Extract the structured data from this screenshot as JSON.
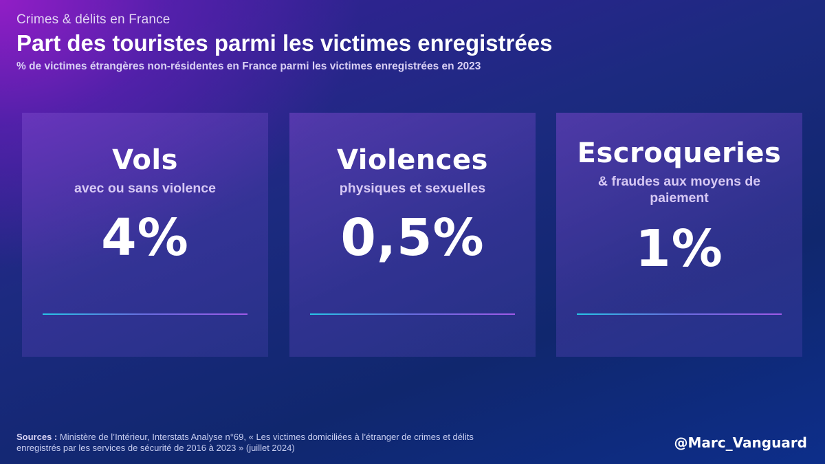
{
  "header": {
    "kicker": "Crimes & délits en France",
    "title": "Part des touristes parmi les victimes enregistrées",
    "subtitle": "% de victimes étrangères non-résidentes en France parmi les victimes enregistrées en 2023"
  },
  "cards": [
    {
      "title": "Vols",
      "subtitle": "avec ou sans violence",
      "value": "4%"
    },
    {
      "title": "Violences",
      "subtitle": "physiques et sexuelles",
      "value": "0,5%"
    },
    {
      "title": "Escroqueries",
      "subtitle": "& fraudes aux moyens de paiement",
      "value": "1%"
    }
  ],
  "footer": {
    "sources_label": "Sources :",
    "sources_text": "Ministère de l’Intérieur, Interstats Analyse n°69, « Les victimes domiciliées à l’étranger de crimes et délits enregistrés par les services de sécurité de 2016 à 2023 » (juillet 2024)",
    "handle": "@Marc_Vanguard"
  },
  "colors": {
    "accent_line_start": "#27c6e6",
    "accent_line_end": "#a05ae8"
  }
}
